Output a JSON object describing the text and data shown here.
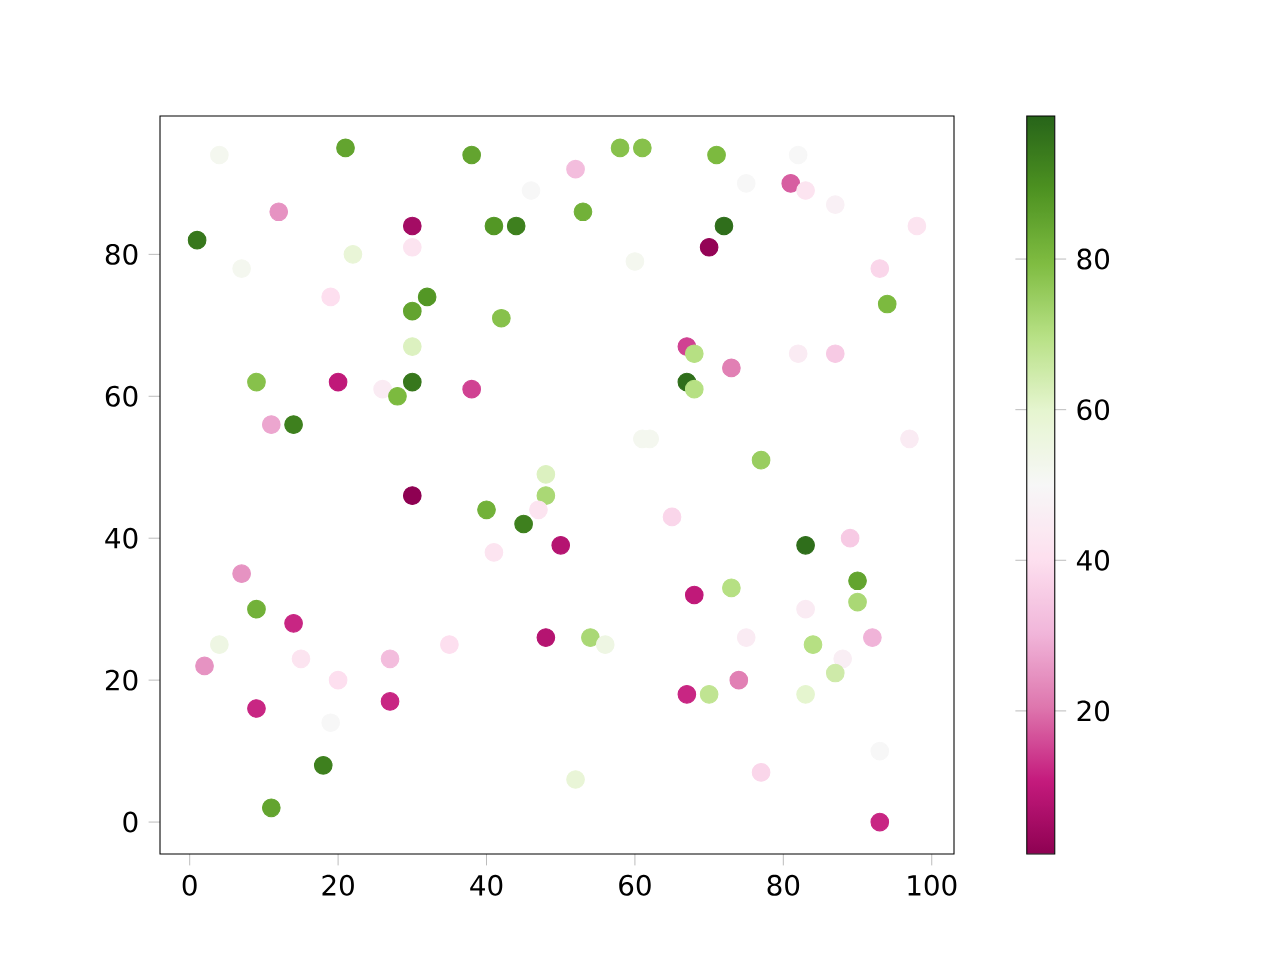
{
  "chart_data": {
    "type": "scatter",
    "marker": "circle",
    "x": [
      1,
      4,
      7,
      12,
      21,
      22,
      19,
      30,
      30,
      30,
      32,
      30,
      38,
      41,
      44,
      46,
      42,
      9,
      20,
      26,
      28,
      30,
      38,
      11,
      14,
      30,
      40,
      45,
      48,
      48,
      47,
      41,
      50,
      7,
      9,
      4,
      2,
      14,
      15,
      20,
      27,
      35,
      27,
      9,
      19,
      18,
      11,
      48,
      52,
      58,
      61,
      71,
      53,
      60,
      82,
      81,
      83,
      87,
      98,
      72,
      70,
      61,
      62,
      67,
      68,
      67,
      68,
      73,
      77,
      93,
      94,
      82,
      87,
      65,
      83,
      89,
      90,
      90,
      68,
      73,
      83,
      54,
      56,
      75,
      84,
      92,
      88,
      87,
      74,
      67,
      70,
      83,
      93,
      77,
      52,
      93,
      97,
      75
    ],
    "values": [
      82,
      94,
      78,
      86,
      95,
      80,
      74,
      84,
      81,
      72,
      74,
      67,
      94,
      84,
      84,
      89,
      71,
      62,
      62,
      61,
      60,
      62,
      61,
      56,
      56,
      46,
      44,
      42,
      46,
      49,
      44,
      38,
      39,
      35,
      30,
      25,
      22,
      28,
      23,
      20,
      23,
      25,
      17,
      16,
      14,
      8,
      2,
      26,
      92,
      95,
      95,
      94,
      86,
      79,
      94,
      90,
      89,
      87,
      84,
      84,
      81,
      54,
      54,
      67,
      66,
      62,
      61,
      64,
      51,
      78,
      73,
      66,
      66,
      43,
      39,
      40,
      34,
      31,
      32,
      33,
      30,
      26,
      25,
      26,
      25,
      26,
      23,
      21,
      20,
      18,
      18,
      18,
      10,
      7,
      6,
      0,
      54,
      90
    ],
    "cvalues": [
      95,
      52,
      52,
      25,
      85,
      58,
      40,
      5,
      42,
      85,
      88,
      62,
      85,
      88,
      93,
      50,
      78,
      78,
      10,
      45,
      80,
      95,
      15,
      28,
      93,
      1,
      82,
      93,
      72,
      62,
      42,
      42,
      8,
      25,
      82,
      55,
      25,
      12,
      42,
      40,
      32,
      40,
      12,
      12,
      50,
      93,
      85,
      8,
      32,
      78,
      78,
      80,
      82,
      52,
      50,
      18,
      42,
      47,
      42,
      97,
      2,
      52,
      52,
      15,
      70,
      97,
      70,
      22,
      75,
      38,
      80,
      45,
      35,
      38,
      97,
      35,
      85,
      72,
      10,
      70,
      45,
      72,
      55,
      45,
      70,
      30,
      46,
      65,
      22,
      12,
      68,
      60,
      50,
      38,
      58,
      12,
      45,
      50
    ],
    "xlim": [
      -4,
      103
    ],
    "ylim": [
      -4.5,
      99.5
    ],
    "xticks": [
      0,
      20,
      40,
      60,
      80,
      100
    ],
    "yticks": [
      0,
      20,
      40,
      60,
      80
    ],
    "clim": [
      1,
      99
    ],
    "cticks": [
      20,
      40,
      60,
      80
    ]
  }
}
